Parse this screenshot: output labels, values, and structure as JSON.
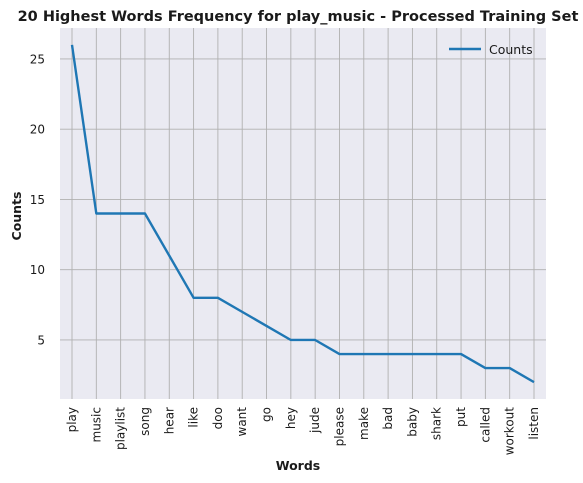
{
  "chart_data": {
    "type": "line",
    "title": "20 Highest Words Frequency for play_music - Processed Training Set",
    "xlabel": "Words",
    "ylabel": "Counts",
    "categories": [
      "play",
      "music",
      "playlist",
      "song",
      "hear",
      "like",
      "doo",
      "want",
      "go",
      "hey",
      "jude",
      "please",
      "make",
      "bad",
      "baby",
      "shark",
      "put",
      "called",
      "workout",
      "listen"
    ],
    "series": [
      {
        "name": "Counts",
        "values": [
          26,
          14,
          14,
          14,
          11,
          8,
          8,
          7,
          6,
          5,
          5,
          4,
          4,
          4,
          4,
          4,
          4,
          3,
          3,
          2
        ]
      }
    ],
    "ylim": [
      0.8,
      27.2
    ],
    "yticks": [
      5,
      10,
      15,
      20,
      25
    ],
    "grid": true,
    "legend": "top-right",
    "colors": {
      "line": "#1f77b4",
      "plot_bg": "#eaeaf2",
      "grid": "#b0b0b0"
    }
  }
}
